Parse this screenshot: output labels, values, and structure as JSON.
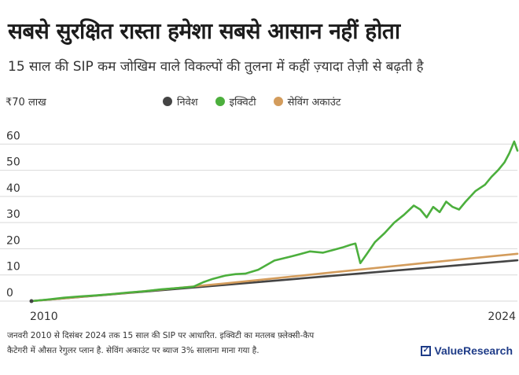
{
  "header": {
    "title": "सबसे सुरक्षित रास्ता हमेशा सबसे आसान नहीं होता",
    "subtitle": "15 साल की SIP कम जोखिम वाले विकल्पों की तुलना में कहीं ज़्यादा तेज़ी से बढ़ती है"
  },
  "chart_data": {
    "type": "line",
    "unit_label": "₹70 लाख",
    "ylim": [
      0,
      70
    ],
    "yticks": [
      "60",
      "50",
      "40",
      "30",
      "20",
      "10",
      "0"
    ],
    "x_labels": [
      "2010",
      "2024"
    ],
    "xlim": [
      2010,
      2025
    ],
    "grid": true,
    "legend_position": "top",
    "series": [
      {
        "name": "निवेश",
        "color": "#444444",
        "x": [
          2010,
          2025
        ],
        "y": [
          0,
          15.6
        ]
      },
      {
        "name": "सेविंग अकाउंट",
        "color": "#d39c5c",
        "x": [
          2010,
          2013,
          2016,
          2019,
          2022,
          2025
        ],
        "y": [
          0,
          3.2,
          6.8,
          10.6,
          14.4,
          18.1
        ]
      },
      {
        "name": "इक्विटी",
        "color": "#4caf3d",
        "x": [
          2010,
          2010.5,
          2011,
          2011.5,
          2012,
          2012.5,
          2013,
          2013.5,
          2014,
          2014.5,
          2015,
          2015.3,
          2015.6,
          2016,
          2016.3,
          2016.6,
          2017,
          2017.5,
          2018,
          2018.3,
          2018.6,
          2019,
          2019.3,
          2019.6,
          2019.85,
          2020.0,
          2020.15,
          2020.35,
          2020.6,
          2020.9,
          2021.2,
          2021.5,
          2021.8,
          2022.0,
          2022.2,
          2022.4,
          2022.6,
          2022.8,
          2023.0,
          2023.2,
          2023.4,
          2023.7,
          2024.0,
          2024.2,
          2024.4,
          2024.6,
          2024.75,
          2024.9,
          2025.0
        ],
        "y": [
          0,
          0.6,
          1.3,
          1.8,
          2.2,
          2.7,
          3.3,
          3.8,
          4.5,
          5.0,
          5.5,
          7.2,
          8.5,
          9.8,
          10.3,
          10.5,
          12.0,
          15.5,
          17.0,
          18.0,
          19.0,
          18.5,
          19.5,
          20.5,
          21.5,
          22.0,
          14.5,
          18.0,
          22.5,
          26.0,
          30.0,
          33.0,
          36.5,
          35.0,
          32.0,
          36.0,
          34.0,
          38.0,
          36.0,
          35.0,
          38.0,
          42.0,
          44.5,
          47.5,
          50.0,
          53.0,
          56.5,
          61.0,
          57.5
        ]
      }
    ]
  },
  "legend": {
    "invest": "निवेश",
    "equity": "इक्विटी",
    "savings": "सेविंग अकाउंट",
    "colors": {
      "invest": "#444444",
      "equity": "#4caf3d",
      "savings": "#d39c5c"
    }
  },
  "footnote": {
    "line1": "जनवरी 2010 से दिसंबर 2024 तक 15 साल की SIP पर आधारित. इक्विटी का मतलब फ़्लेक्सी-कैप",
    "line2": "कैटेगरी में औसत रेगुलर प्लान है. सेविंग अकाउंट पर ब्याज 3% सालाना माना गया है."
  },
  "brand": {
    "name": "ValueResearch",
    "icon": "check-box-icon"
  }
}
